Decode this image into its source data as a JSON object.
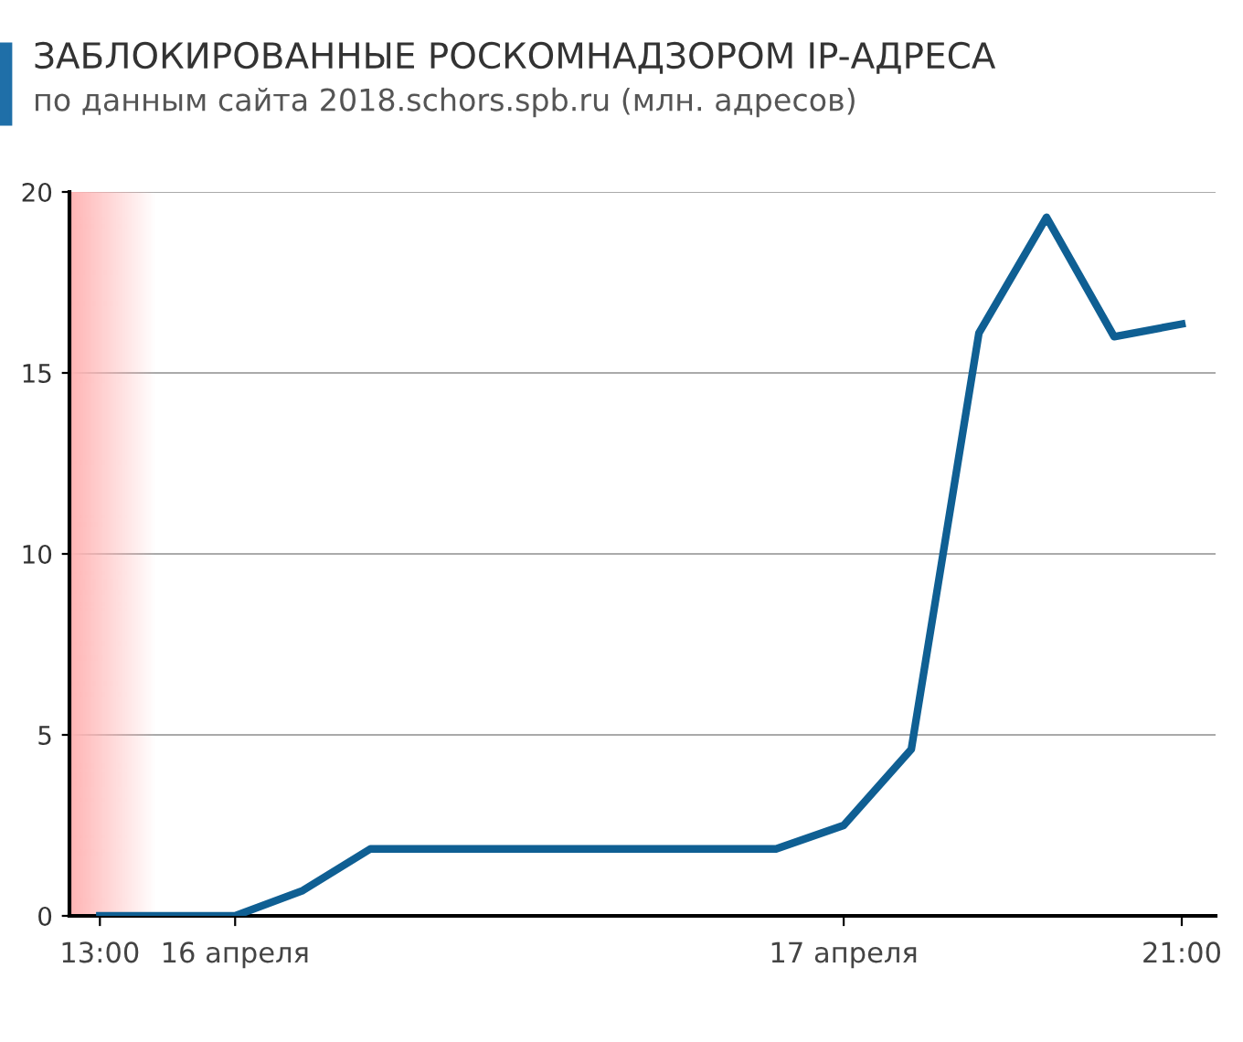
{
  "chart_data": {
    "type": "line",
    "title": "ЗАБЛОКИРОВАННЫЕ РОСКОМНАДЗОРОМ IP-АДРЕСА",
    "subtitle": "по данным сайта 2018.schors.spb.ru (млн. адресов)",
    "categories": [
      "13:00",
      null,
      "16 апреля",
      null,
      null,
      null,
      null,
      null,
      null,
      null,
      null,
      "17 апреля",
      null,
      null,
      null,
      null,
      "21:00"
    ],
    "series": [
      {
        "color": "#0f5f93",
        "values": [
          0,
          0,
          0,
          0.7,
          1.85,
          1.85,
          1.85,
          1.85,
          1.85,
          1.85,
          1.85,
          2.5,
          4.6,
          16.1,
          19.3,
          16.0,
          16.35
        ]
      }
    ],
    "ylim": [
      0,
      20
    ],
    "yticks": [
      0,
      5,
      10,
      15,
      20
    ],
    "grid": "y",
    "marker": "none",
    "line_style": "solid"
  }
}
